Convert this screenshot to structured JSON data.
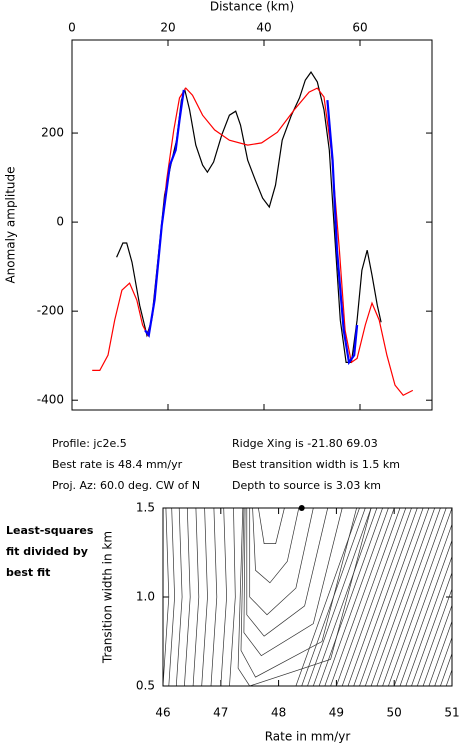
{
  "chart_data": [
    {
      "type": "line",
      "xlabel": "Distance (km)",
      "ylabel": "Anomaly amplitude",
      "xaxis": "top",
      "xlim": [
        0,
        75
      ],
      "ylim": [
        -422,
        409
      ],
      "xticks": [
        0,
        20,
        40,
        60
      ],
      "yticks": [
        -400,
        -200,
        0,
        200
      ],
      "series": [
        {
          "color": "#000000",
          "x": [
            9.3,
            10.6,
            11.4,
            12.5,
            14.1,
            15.6,
            16.6,
            17.9,
            19.3,
            20.8,
            21.8,
            22.8,
            23.5,
            24.5,
            25.8,
            27.2,
            28.2,
            29.5,
            31.2,
            32.8,
            34.1,
            35.1,
            36.6,
            38.2,
            39.7,
            41.1,
            42.4,
            43.8,
            45.7,
            47.4,
            48.6,
            49.8,
            51.1,
            52.5,
            53.6,
            54.8,
            55.9,
            57.1,
            58.2,
            59.4,
            60.4,
            61.5,
            62.5,
            63.6,
            64.4
          ],
          "values": [
            -79,
            -47,
            -47,
            -90,
            -187,
            -254,
            -220,
            -85,
            61,
            139,
            184,
            274,
            297,
            252,
            173,
            128,
            112,
            135,
            196,
            240,
            249,
            218,
            139,
            94,
            54,
            34,
            83,
            184,
            240,
            279,
            319,
            337,
            315,
            252,
            162,
            -40,
            -220,
            -315,
            -315,
            -220,
            -108,
            -63,
            -119,
            -187,
            -225
          ]
        },
        {
          "color": "#ff0000",
          "x": [
            4.2,
            5.8,
            7.5,
            8.9,
            10.4,
            12.0,
            13.5,
            14.7,
            15.8,
            16.8,
            18.3,
            19.7,
            21.2,
            22.4,
            23.7,
            25.1,
            27.2,
            29.7,
            32.8,
            36.6,
            39.5,
            42.8,
            46.3,
            49.4,
            51.1,
            52.5,
            54.0,
            55.7,
            56.9,
            58.2,
            59.4,
            61.1,
            62.5,
            64.0,
            65.6,
            67.3,
            69.0,
            71.0
          ],
          "values": [
            -333,
            -333,
            -299,
            -220,
            -153,
            -137,
            -175,
            -231,
            -254,
            -209,
            -52,
            94,
            207,
            279,
            301,
            285,
            240,
            207,
            184,
            173,
            178,
            202,
            252,
            292,
            301,
            281,
            162,
            -63,
            -243,
            -315,
            -306,
            -231,
            -182,
            -220,
            -299,
            -366,
            -389,
            -378
          ]
        },
        {
          "color": "#0000ff",
          "x": [
            15.2,
            16.0,
            17.2,
            18.7,
            20.4,
            21.6,
            22.4,
            23.3,
            null,
            53.2,
            54.3,
            55.2,
            56.6,
            57.7,
            58.8,
            59.4
          ],
          "values": [
            -243,
            -254,
            -175,
            -7,
            128,
            162,
            229,
            297,
            null,
            274,
            139,
            -63,
            -243,
            -315,
            -299,
            -231
          ]
        }
      ],
      "annotations": [
        "Profile: jc2e.5",
        "Best rate is 48.4 mm/yr",
        "Proj. Az: 60.0 deg. CW of N",
        "Ridge Xing is -21.80 69.03",
        "Best transition width is 1.5 km",
        "Depth to source is   3.03 km"
      ]
    },
    {
      "type": "contour",
      "xlabel": "Rate in mm/yr",
      "ylabel": "Transition width in km",
      "note": [
        "Least-squares",
        "fit divided by",
        "best fit"
      ],
      "xlim": [
        46,
        51
      ],
      "ylim": [
        0.5,
        1.5
      ],
      "xticks": [
        46,
        47,
        48,
        49,
        50,
        51
      ],
      "yticks": [
        {
          "value": 0.5,
          "label": "0.5"
        },
        {
          "value": 1,
          "label": "1.0"
        },
        {
          "value": 1.5,
          "label": "1.5"
        }
      ],
      "marker": {
        "x": 48.4,
        "y": 1.5
      },
      "contours": [
        {
          "x": [
            46.05,
            46.1,
            46.0
          ],
          "y": [
            1.5,
            1.0,
            0.5
          ]
        },
        {
          "x": [
            46.15,
            46.2,
            46.1
          ],
          "y": [
            1.5,
            1.0,
            0.5
          ]
        },
        {
          "x": [
            46.28,
            46.33,
            46.23
          ],
          "y": [
            1.5,
            1.0,
            0.5
          ]
        },
        {
          "x": [
            46.42,
            46.47,
            46.37
          ],
          "y": [
            1.5,
            1.0,
            0.5
          ]
        },
        {
          "x": [
            46.57,
            46.62,
            46.52
          ],
          "y": [
            1.5,
            1.0,
            0.5
          ]
        },
        {
          "x": [
            46.72,
            46.77,
            46.67
          ],
          "y": [
            1.5,
            1.0,
            0.5
          ]
        },
        {
          "x": [
            46.88,
            46.93,
            46.83
          ],
          "y": [
            1.5,
            1.0,
            0.5
          ]
        },
        {
          "x": [
            47.05,
            47.1,
            47.0
          ],
          "y": [
            1.5,
            1.0,
            0.5
          ]
        },
        {
          "x": [
            47.22,
            47.25,
            47.15
          ],
          "y": [
            1.5,
            1.0,
            0.5
          ]
        },
        {
          "x": [
            47.65,
            47.75,
            47.95,
            48.1
          ],
          "y": [
            1.5,
            1.3,
            1.3,
            1.5
          ]
        },
        {
          "x": [
            47.55,
            47.6,
            47.85,
            48.15,
            48.35
          ],
          "y": [
            1.5,
            1.15,
            1.08,
            1.2,
            1.5
          ]
        },
        {
          "x": [
            47.5,
            47.5,
            47.8,
            48.3,
            48.6
          ],
          "y": [
            1.5,
            1.0,
            0.9,
            1.05,
            1.5
          ]
        },
        {
          "x": [
            47.45,
            47.45,
            47.75,
            48.45,
            48.85
          ],
          "y": [
            1.5,
            0.9,
            0.78,
            0.95,
            1.5
          ]
        },
        {
          "x": [
            47.42,
            47.4,
            47.7,
            48.6,
            49.1
          ],
          "y": [
            1.5,
            0.8,
            0.67,
            0.85,
            1.5
          ]
        },
        {
          "x": [
            47.4,
            47.35,
            47.6,
            48.75,
            49.35
          ],
          "y": [
            1.5,
            0.7,
            0.55,
            0.75,
            1.5
          ]
        },
        {
          "x": [
            47.38,
            47.3,
            47.5,
            48.9,
            49.6
          ],
          "y": [
            1.5,
            0.6,
            0.5,
            0.65,
            1.5
          ]
        },
        {
          "x": [
            48.3,
            49.4
          ],
          "y": [
            0.5,
            1.5
          ]
        },
        {
          "x": [
            48.4,
            49.5
          ],
          "y": [
            0.5,
            1.5
          ]
        },
        {
          "x": [
            48.5,
            49.6
          ],
          "y": [
            0.5,
            1.5
          ]
        },
        {
          "x": [
            48.6,
            49.7
          ],
          "y": [
            0.5,
            1.5
          ]
        },
        {
          "x": [
            48.7,
            49.8
          ],
          "y": [
            0.5,
            1.5
          ]
        },
        {
          "x": [
            48.8,
            49.9
          ],
          "y": [
            0.5,
            1.5
          ]
        },
        {
          "x": [
            48.9,
            50.0
          ],
          "y": [
            0.5,
            1.5
          ]
        },
        {
          "x": [
            49.0,
            50.1
          ],
          "y": [
            0.5,
            1.5
          ]
        },
        {
          "x": [
            49.1,
            50.2
          ],
          "y": [
            0.5,
            1.5
          ]
        },
        {
          "x": [
            49.2,
            50.3
          ],
          "y": [
            0.5,
            1.5
          ]
        },
        {
          "x": [
            49.3,
            50.4
          ],
          "y": [
            0.5,
            1.5
          ]
        },
        {
          "x": [
            49.4,
            50.5
          ],
          "y": [
            0.5,
            1.5
          ]
        },
        {
          "x": [
            49.5,
            50.6
          ],
          "y": [
            0.5,
            1.5
          ]
        },
        {
          "x": [
            49.6,
            50.7
          ],
          "y": [
            0.5,
            1.5
          ]
        },
        {
          "x": [
            49.7,
            50.8
          ],
          "y": [
            0.5,
            1.5
          ]
        },
        {
          "x": [
            49.8,
            50.9
          ],
          "y": [
            0.5,
            1.5
          ]
        },
        {
          "x": [
            49.9,
            51.0
          ],
          "y": [
            0.5,
            1.5
          ]
        },
        {
          "x": [
            50.0,
            51.1
          ],
          "y": [
            0.5,
            1.5
          ]
        },
        {
          "x": [
            50.1,
            51.2
          ],
          "y": [
            0.5,
            1.5
          ]
        },
        {
          "x": [
            50.2,
            51.3
          ],
          "y": [
            0.5,
            1.5
          ]
        },
        {
          "x": [
            50.3,
            51.4
          ],
          "y": [
            0.5,
            1.5
          ]
        },
        {
          "x": [
            50.4,
            51.5
          ],
          "y": [
            0.5,
            1.5
          ]
        },
        {
          "x": [
            50.5,
            51.6
          ],
          "y": [
            0.5,
            1.5
          ]
        },
        {
          "x": [
            50.6,
            51.7
          ],
          "y": [
            0.5,
            1.5
          ]
        },
        {
          "x": [
            50.7,
            51.8
          ],
          "y": [
            0.5,
            1.5
          ]
        },
        {
          "x": [
            50.8,
            51.9
          ],
          "y": [
            0.5,
            1.5
          ]
        },
        {
          "x": [
            50.9,
            52.0
          ],
          "y": [
            0.5,
            1.5
          ]
        }
      ]
    }
  ]
}
